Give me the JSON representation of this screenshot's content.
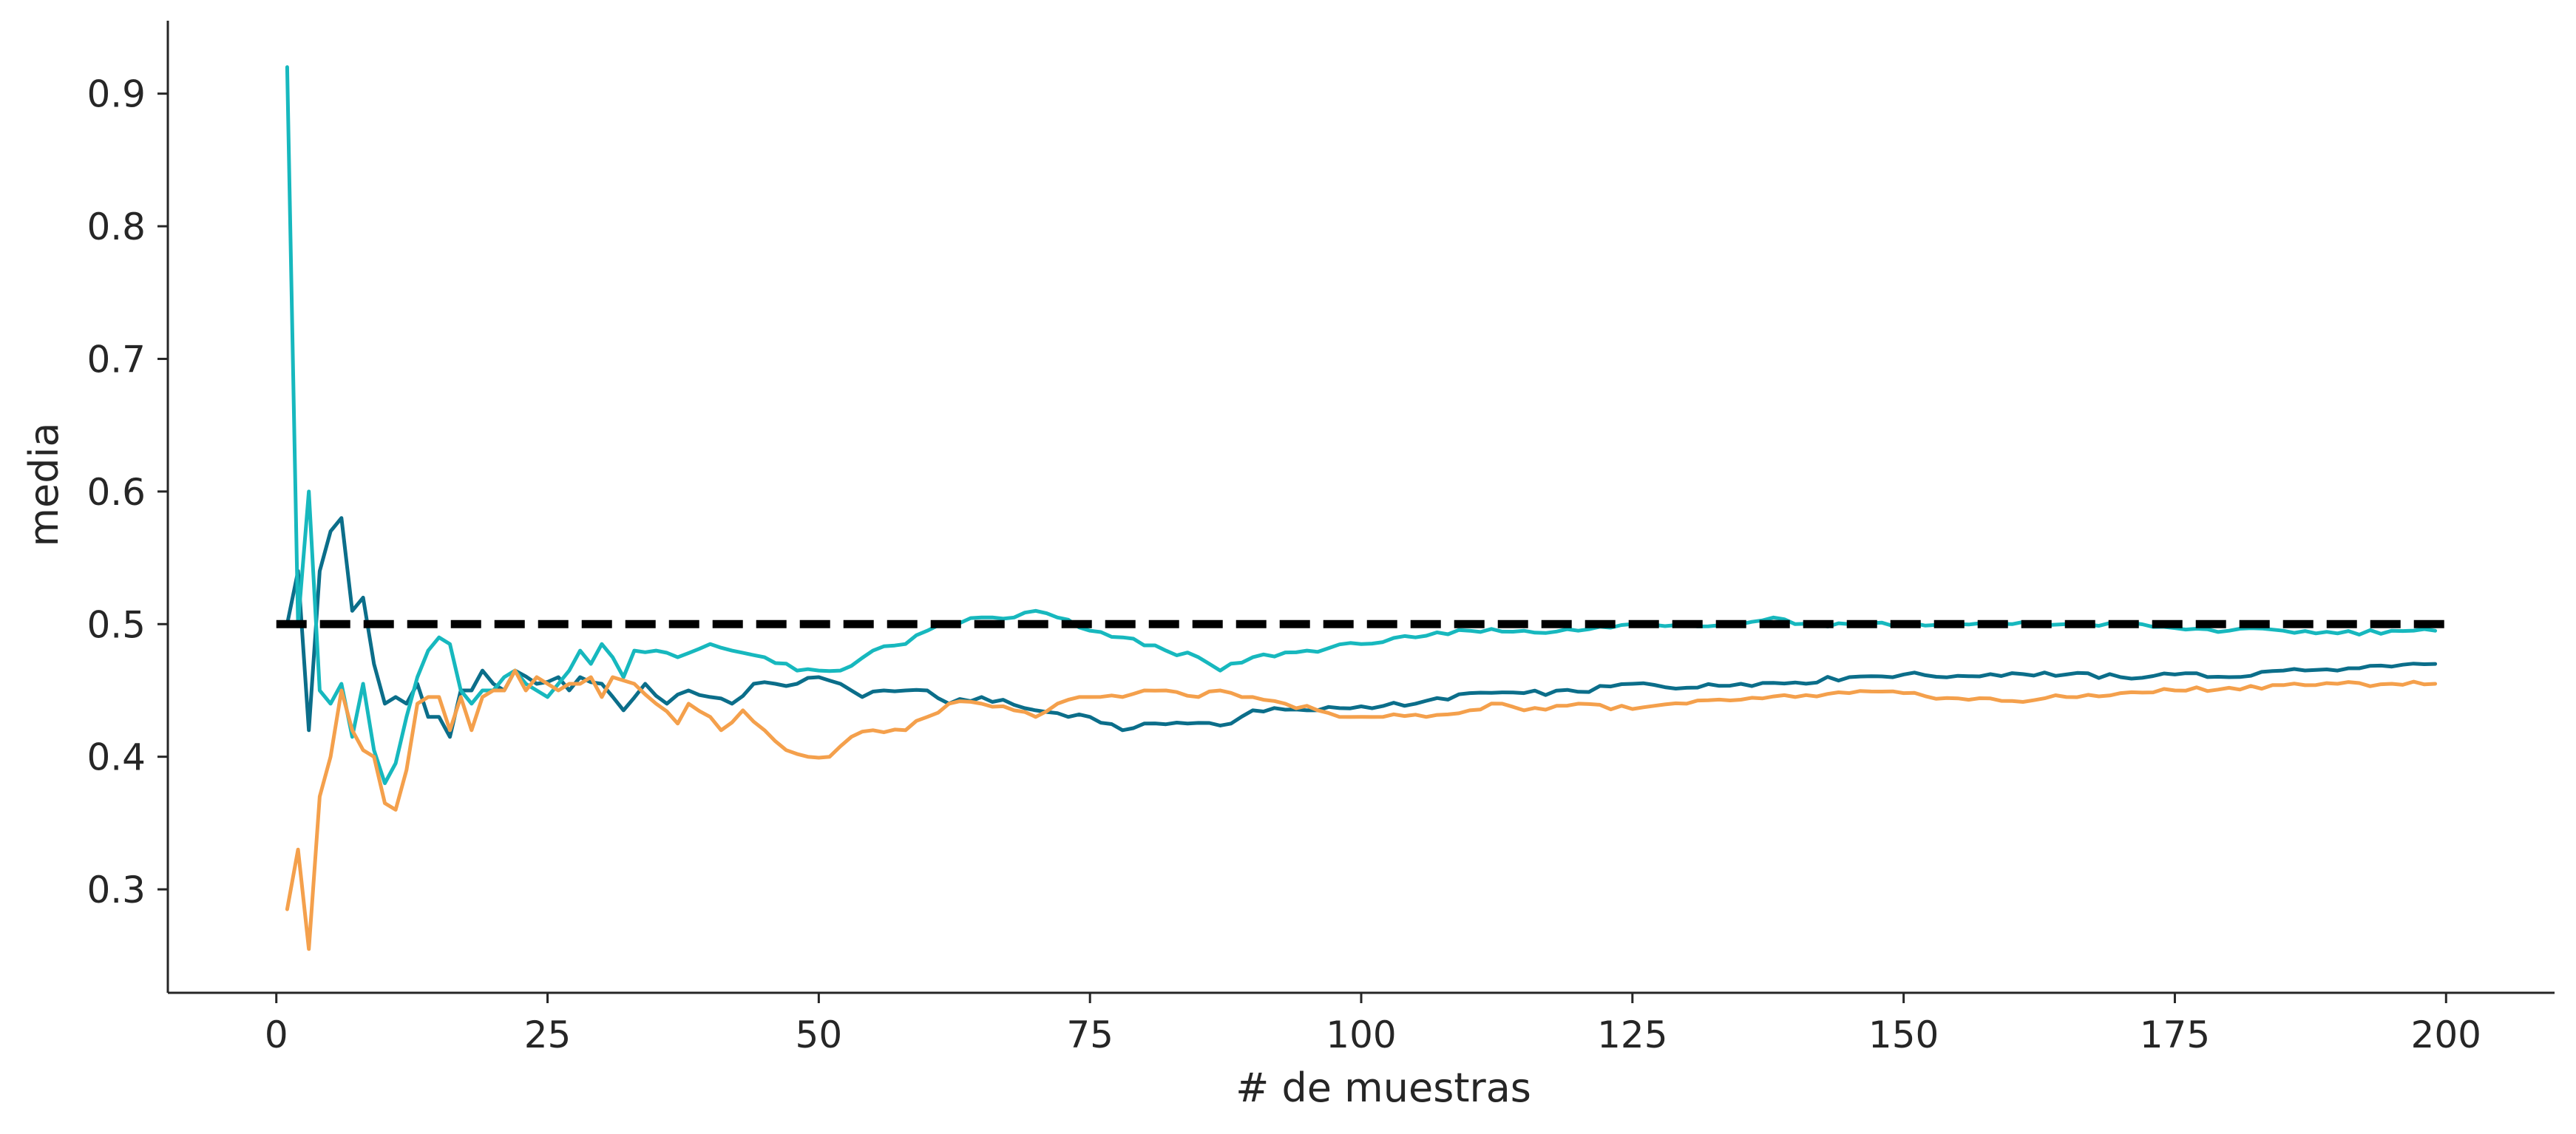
{
  "chart_data": {
    "type": "line",
    "title": "",
    "xlabel": "# de muestras",
    "ylabel": "media",
    "xlim": [
      -10,
      210
    ],
    "ylim": [
      0.222,
      0.955
    ],
    "xticks": [
      0,
      25,
      50,
      75,
      100,
      125,
      150,
      175,
      200
    ],
    "xtick_labels": [
      "0",
      "25",
      "50",
      "75",
      "100",
      "125",
      "150",
      "175",
      "200"
    ],
    "yticks": [
      0.3,
      0.4,
      0.5,
      0.6,
      0.7,
      0.8,
      0.9
    ],
    "ytick_labels": [
      "0.3",
      "0.4",
      "0.5",
      "0.6",
      "0.7",
      "0.8",
      "0.9"
    ],
    "grid": false,
    "legend": "none",
    "reference_line": {
      "y": 0.5,
      "x_range": [
        0,
        200
      ],
      "style": "dashed",
      "color": "#000000"
    },
    "series": [
      {
        "color": "#0b6e8a",
        "anchors": [
          [
            1,
            0.5
          ],
          [
            2,
            0.54
          ],
          [
            3,
            0.42
          ],
          [
            4,
            0.54
          ],
          [
            5,
            0.57
          ],
          [
            6,
            0.58
          ],
          [
            7,
            0.51
          ],
          [
            8,
            0.52
          ],
          [
            9,
            0.47
          ],
          [
            10,
            0.44
          ],
          [
            11,
            0.445
          ],
          [
            12,
            0.44
          ],
          [
            13,
            0.455
          ],
          [
            14,
            0.43
          ],
          [
            15,
            0.43
          ],
          [
            16,
            0.415
          ],
          [
            17,
            0.45
          ],
          [
            18,
            0.45
          ],
          [
            19,
            0.465
          ],
          [
            20,
            0.455
          ],
          [
            21,
            0.45
          ],
          [
            22,
            0.465
          ],
          [
            24,
            0.455
          ],
          [
            26,
            0.46
          ],
          [
            27,
            0.45
          ],
          [
            28,
            0.46
          ],
          [
            30,
            0.455
          ],
          [
            32,
            0.435
          ],
          [
            34,
            0.455
          ],
          [
            36,
            0.44
          ],
          [
            38,
            0.45
          ],
          [
            40,
            0.445
          ],
          [
            42,
            0.44
          ],
          [
            44,
            0.455
          ],
          [
            46,
            0.455
          ],
          [
            48,
            0.455
          ],
          [
            50,
            0.46
          ],
          [
            52,
            0.455
          ],
          [
            54,
            0.445
          ],
          [
            56,
            0.45
          ],
          [
            58,
            0.45
          ],
          [
            60,
            0.45
          ],
          [
            62,
            0.44
          ],
          [
            65,
            0.445
          ],
          [
            70,
            0.435
          ],
          [
            75,
            0.43
          ],
          [
            78,
            0.42
          ],
          [
            80,
            0.425
          ],
          [
            84,
            0.425
          ],
          [
            88,
            0.425
          ],
          [
            90,
            0.435
          ],
          [
            95,
            0.435
          ],
          [
            100,
            0.438
          ],
          [
            105,
            0.44
          ],
          [
            110,
            0.448
          ],
          [
            115,
            0.448
          ],
          [
            120,
            0.449
          ],
          [
            125,
            0.455
          ],
          [
            130,
            0.452
          ],
          [
            135,
            0.455
          ],
          [
            140,
            0.456
          ],
          [
            145,
            0.46
          ],
          [
            150,
            0.462
          ],
          [
            155,
            0.461
          ],
          [
            160,
            0.463
          ],
          [
            165,
            0.462
          ],
          [
            170,
            0.46
          ],
          [
            175,
            0.462
          ],
          [
            180,
            0.46
          ],
          [
            185,
            0.465
          ],
          [
            190,
            0.465
          ],
          [
            195,
            0.468
          ],
          [
            199,
            0.47
          ]
        ]
      },
      {
        "color": "#17b8be",
        "anchors": [
          [
            1,
            0.92
          ],
          [
            2,
            0.5
          ],
          [
            3,
            0.6
          ],
          [
            4,
            0.45
          ],
          [
            5,
            0.44
          ],
          [
            6,
            0.455
          ],
          [
            7,
            0.415
          ],
          [
            8,
            0.455
          ],
          [
            9,
            0.405
          ],
          [
            10,
            0.38
          ],
          [
            11,
            0.395
          ],
          [
            12,
            0.43
          ],
          [
            13,
            0.46
          ],
          [
            14,
            0.48
          ],
          [
            15,
            0.49
          ],
          [
            16,
            0.485
          ],
          [
            17,
            0.45
          ],
          [
            18,
            0.44
          ],
          [
            19,
            0.45
          ],
          [
            20,
            0.45
          ],
          [
            21,
            0.46
          ],
          [
            22,
            0.465
          ],
          [
            23,
            0.455
          ],
          [
            24,
            0.45
          ],
          [
            25,
            0.445
          ],
          [
            26,
            0.455
          ],
          [
            27,
            0.465
          ],
          [
            28,
            0.48
          ],
          [
            29,
            0.47
          ],
          [
            30,
            0.485
          ],
          [
            31,
            0.475
          ],
          [
            32,
            0.46
          ],
          [
            33,
            0.48
          ],
          [
            35,
            0.48
          ],
          [
            37,
            0.475
          ],
          [
            40,
            0.485
          ],
          [
            42,
            0.48
          ],
          [
            45,
            0.475
          ],
          [
            48,
            0.465
          ],
          [
            50,
            0.465
          ],
          [
            52,
            0.465
          ],
          [
            55,
            0.48
          ],
          [
            58,
            0.485
          ],
          [
            60,
            0.495
          ],
          [
            62,
            0.5
          ],
          [
            65,
            0.505
          ],
          [
            68,
            0.505
          ],
          [
            70,
            0.51
          ],
          [
            72,
            0.505
          ],
          [
            75,
            0.495
          ],
          [
            78,
            0.49
          ],
          [
            82,
            0.48
          ],
          [
            85,
            0.475
          ],
          [
            87,
            0.465
          ],
          [
            90,
            0.475
          ],
          [
            95,
            0.48
          ],
          [
            100,
            0.485
          ],
          [
            105,
            0.49
          ],
          [
            110,
            0.495
          ],
          [
            115,
            0.495
          ],
          [
            120,
            0.495
          ],
          [
            125,
            0.5
          ],
          [
            130,
            0.5
          ],
          [
            135,
            0.5
          ],
          [
            138,
            0.505
          ],
          [
            140,
            0.5
          ],
          [
            145,
            0.5
          ],
          [
            150,
            0.5
          ],
          [
            155,
            0.5
          ],
          [
            160,
            0.5
          ],
          [
            165,
            0.5
          ],
          [
            170,
            0.5
          ],
          [
            175,
            0.497
          ],
          [
            180,
            0.495
          ],
          [
            185,
            0.495
          ],
          [
            190,
            0.493
          ],
          [
            195,
            0.495
          ],
          [
            199,
            0.495
          ]
        ]
      },
      {
        "color": "#f4a04c",
        "anchors": [
          [
            1,
            0.285
          ],
          [
            2,
            0.33
          ],
          [
            3,
            0.255
          ],
          [
            4,
            0.37
          ],
          [
            5,
            0.4
          ],
          [
            6,
            0.45
          ],
          [
            7,
            0.42
          ],
          [
            8,
            0.405
          ],
          [
            9,
            0.4
          ],
          [
            10,
            0.365
          ],
          [
            11,
            0.36
          ],
          [
            12,
            0.39
          ],
          [
            13,
            0.44
          ],
          [
            14,
            0.445
          ],
          [
            15,
            0.445
          ],
          [
            16,
            0.42
          ],
          [
            17,
            0.445
          ],
          [
            18,
            0.42
          ],
          [
            19,
            0.445
          ],
          [
            20,
            0.45
          ],
          [
            21,
            0.45
          ],
          [
            22,
            0.465
          ],
          [
            23,
            0.45
          ],
          [
            24,
            0.46
          ],
          [
            25,
            0.455
          ],
          [
            26,
            0.45
          ],
          [
            27,
            0.455
          ],
          [
            28,
            0.455
          ],
          [
            29,
            0.46
          ],
          [
            30,
            0.445
          ],
          [
            31,
            0.46
          ],
          [
            33,
            0.455
          ],
          [
            35,
            0.44
          ],
          [
            37,
            0.425
          ],
          [
            38,
            0.44
          ],
          [
            40,
            0.43
          ],
          [
            41,
            0.42
          ],
          [
            43,
            0.435
          ],
          [
            45,
            0.42
          ],
          [
            47,
            0.405
          ],
          [
            49,
            0.4
          ],
          [
            51,
            0.4
          ],
          [
            53,
            0.415
          ],
          [
            55,
            0.42
          ],
          [
            58,
            0.42
          ],
          [
            60,
            0.43
          ],
          [
            62,
            0.44
          ],
          [
            65,
            0.44
          ],
          [
            68,
            0.435
          ],
          [
            70,
            0.43
          ],
          [
            72,
            0.44
          ],
          [
            75,
            0.445
          ],
          [
            78,
            0.445
          ],
          [
            80,
            0.45
          ],
          [
            82,
            0.45
          ],
          [
            85,
            0.445
          ],
          [
            87,
            0.45
          ],
          [
            90,
            0.445
          ],
          [
            93,
            0.44
          ],
          [
            96,
            0.435
          ],
          [
            98,
            0.43
          ],
          [
            100,
            0.43
          ],
          [
            103,
            0.432
          ],
          [
            106,
            0.43
          ],
          [
            110,
            0.435
          ],
          [
            113,
            0.44
          ],
          [
            115,
            0.435
          ],
          [
            120,
            0.44
          ],
          [
            125,
            0.436
          ],
          [
            130,
            0.44
          ],
          [
            135,
            0.443
          ],
          [
            140,
            0.445
          ],
          [
            145,
            0.448
          ],
          [
            150,
            0.448
          ],
          [
            155,
            0.444
          ],
          [
            160,
            0.442
          ],
          [
            165,
            0.445
          ],
          [
            170,
            0.448
          ],
          [
            175,
            0.45
          ],
          [
            180,
            0.452
          ],
          [
            185,
            0.454
          ],
          [
            190,
            0.455
          ],
          [
            195,
            0.455
          ],
          [
            199,
            0.455
          ]
        ]
      }
    ]
  }
}
